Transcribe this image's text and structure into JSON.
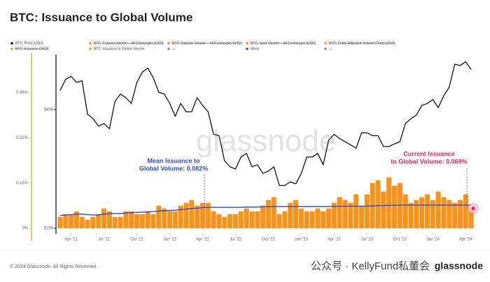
{
  "chart_data": {
    "type": "combo",
    "title": "BTC: Issuance to Global Volume",
    "legend": [
      {
        "label": "BTC: Price [USD]",
        "color": "#111111",
        "struck": false
      },
      {
        "label": "BTC: Futures Volume – All Exchanges [USD]",
        "color": "#f7931a",
        "struck": true
      },
      {
        "label": "BTC: Options Volume – All Exchanges [USD]",
        "color": "#f7931a",
        "struck": true
      },
      {
        "label": "BTC: Spot Volume – All Exchanges [USD]",
        "color": "#f7931a",
        "struck": true
      },
      {
        "label": "BTC: Entity-Adjusted Volume (Total) [USD]",
        "color": "#f7931a",
        "struck": true
      },
      {
        "label": "BTC: Issuance [USD]",
        "color": "#f7931a",
        "struck": true
      },
      {
        "label": "BTC: Issuance to Global Volume",
        "color": "#f7931a",
        "struck": false
      },
      {
        "label": "—",
        "color": "#888888",
        "struck": false
      },
      {
        "label": "Mean",
        "color": "#2a4bd7",
        "struck": false
      },
      {
        "label": "—",
        "color": "#888888",
        "struck": false
      }
    ],
    "categories": [
      null,
      null,
      "Apr '21",
      null,
      null,
      null,
      null,
      null,
      "Jul '21",
      null,
      null,
      null,
      null,
      null,
      "Oct '21",
      null,
      null,
      null,
      null,
      null,
      "Jan '22",
      null,
      null,
      null,
      null,
      null,
      "Apr '22",
      null,
      null,
      null,
      null,
      null,
      "Jul '22",
      null,
      null,
      null,
      null,
      null,
      "Oct '22",
      null,
      null,
      null,
      null,
      null,
      "Jan '23",
      null,
      null,
      null,
      null,
      null,
      "Apr '23",
      null,
      null,
      null,
      null,
      null,
      "Jul '23",
      null,
      null,
      null,
      null,
      null,
      "Oct '23",
      null,
      null,
      null,
      null,
      null,
      "Jan '24",
      null,
      null,
      null,
      null,
      null,
      "Apr '24",
      null
    ],
    "series": [
      {
        "kind": "line",
        "axis": "y2",
        "color": "#111111",
        "values": [
          50000,
          57000,
          59000,
          55000,
          56000,
          38000,
          36000,
          33000,
          34000,
          32000,
          44000,
          48000,
          46000,
          43000,
          55000,
          62000,
          65000,
          58000,
          49000,
          48000,
          43000,
          37000,
          43000,
          39000,
          39000,
          46000,
          42000,
          39000,
          30000,
          29500,
          22000,
          20500,
          20000,
          23000,
          24000,
          20500,
          21000,
          19000,
          19500,
          20500,
          16500,
          16500,
          17200,
          16800,
          19000,
          23000,
          23000,
          24000,
          21000,
          28000,
          30000,
          28500,
          27500,
          26500,
          25500,
          30500,
          30500,
          29500,
          29500,
          26000,
          26000,
          26800,
          27500,
          34000,
          36000,
          37500,
          42000,
          43000,
          45000,
          41000,
          47000,
          52000,
          68000,
          67000,
          70000,
          64000
        ]
      },
      {
        "kind": "bar",
        "axis": "y",
        "color": "#f7931a",
        "values": [
          0.04,
          0.05,
          0.05,
          0.06,
          0.04,
          0.03,
          0.04,
          0.05,
          0.07,
          0.06,
          0.04,
          0.04,
          0.06,
          0.06,
          0.05,
          0.05,
          0.06,
          0.05,
          0.08,
          0.07,
          0.06,
          0.06,
          0.08,
          0.09,
          0.1,
          0.08,
          0.09,
          0.09,
          0.06,
          0.05,
          0.04,
          0.05,
          0.05,
          0.06,
          0.07,
          0.06,
          0.06,
          0.08,
          0.1,
          0.11,
          0.05,
          0.06,
          0.09,
          0.1,
          0.07,
          0.06,
          0.06,
          0.07,
          0.06,
          0.07,
          0.09,
          0.11,
          0.1,
          0.09,
          0.12,
          0.08,
          0.12,
          0.16,
          0.17,
          0.13,
          0.18,
          0.15,
          0.16,
          0.12,
          0.09,
          0.1,
          0.11,
          0.12,
          0.1,
          0.13,
          0.11,
          0.1,
          0.09,
          0.1,
          0.12,
          0.07
        ]
      },
      {
        "kind": "line",
        "axis": "y",
        "color": "#2a4bd7",
        "values": [
          0.045,
          0.047,
          0.048,
          0.05,
          0.05,
          0.048,
          0.047,
          0.047,
          0.05,
          0.052,
          0.052,
          0.052,
          0.054,
          0.055,
          0.056,
          0.057,
          0.058,
          0.059,
          0.061,
          0.062,
          0.063,
          0.064,
          0.066,
          0.068,
          0.07,
          0.071,
          0.073,
          0.074,
          0.074,
          0.074,
          0.074,
          0.074,
          0.074,
          0.074,
          0.075,
          0.075,
          0.075,
          0.076,
          0.076,
          0.077,
          0.077,
          0.077,
          0.077,
          0.077,
          0.077,
          0.077,
          0.077,
          0.077,
          0.077,
          0.077,
          0.077,
          0.078,
          0.078,
          0.078,
          0.078,
          0.078,
          0.078,
          0.079,
          0.08,
          0.08,
          0.081,
          0.081,
          0.082,
          0.082,
          0.082,
          0.082,
          0.082,
          0.082,
          0.082,
          0.082,
          0.082,
          0.082,
          0.082,
          0.082,
          0.082,
          0.082
        ]
      }
    ],
    "ylim": [
      0,
      0.61
    ],
    "yticks": [
      {
        "value": 0,
        "label": "0%"
      },
      {
        "value": 0.16,
        "label": "0.16%"
      },
      {
        "value": 0.32,
        "label": "0.32%"
      },
      {
        "value": 0.48,
        "label": "0.48%"
      }
    ],
    "y2lim": [
      10000,
      75000
    ],
    "y2log": true,
    "y2ticks": [
      {
        "value": 10000,
        "label": "$10k"
      },
      {
        "value": 40000,
        "label": "$40k"
      }
    ],
    "grid": false,
    "annotations": [
      {
        "lines": [
          "Mean Issuance to",
          "Global Volume: 0.082%"
        ],
        "color": "#2a4bd7"
      },
      {
        "lines": [
          "Current Issuance",
          "to Global Volume: 0.069%"
        ],
        "color": "#e0245e"
      }
    ],
    "watermark": "glassnode",
    "footer": "© 2024 Glassnode. All Rights Reserved.",
    "logo": "glassnode",
    "overlay_text": "公众号 · KellyFund私董会"
  }
}
